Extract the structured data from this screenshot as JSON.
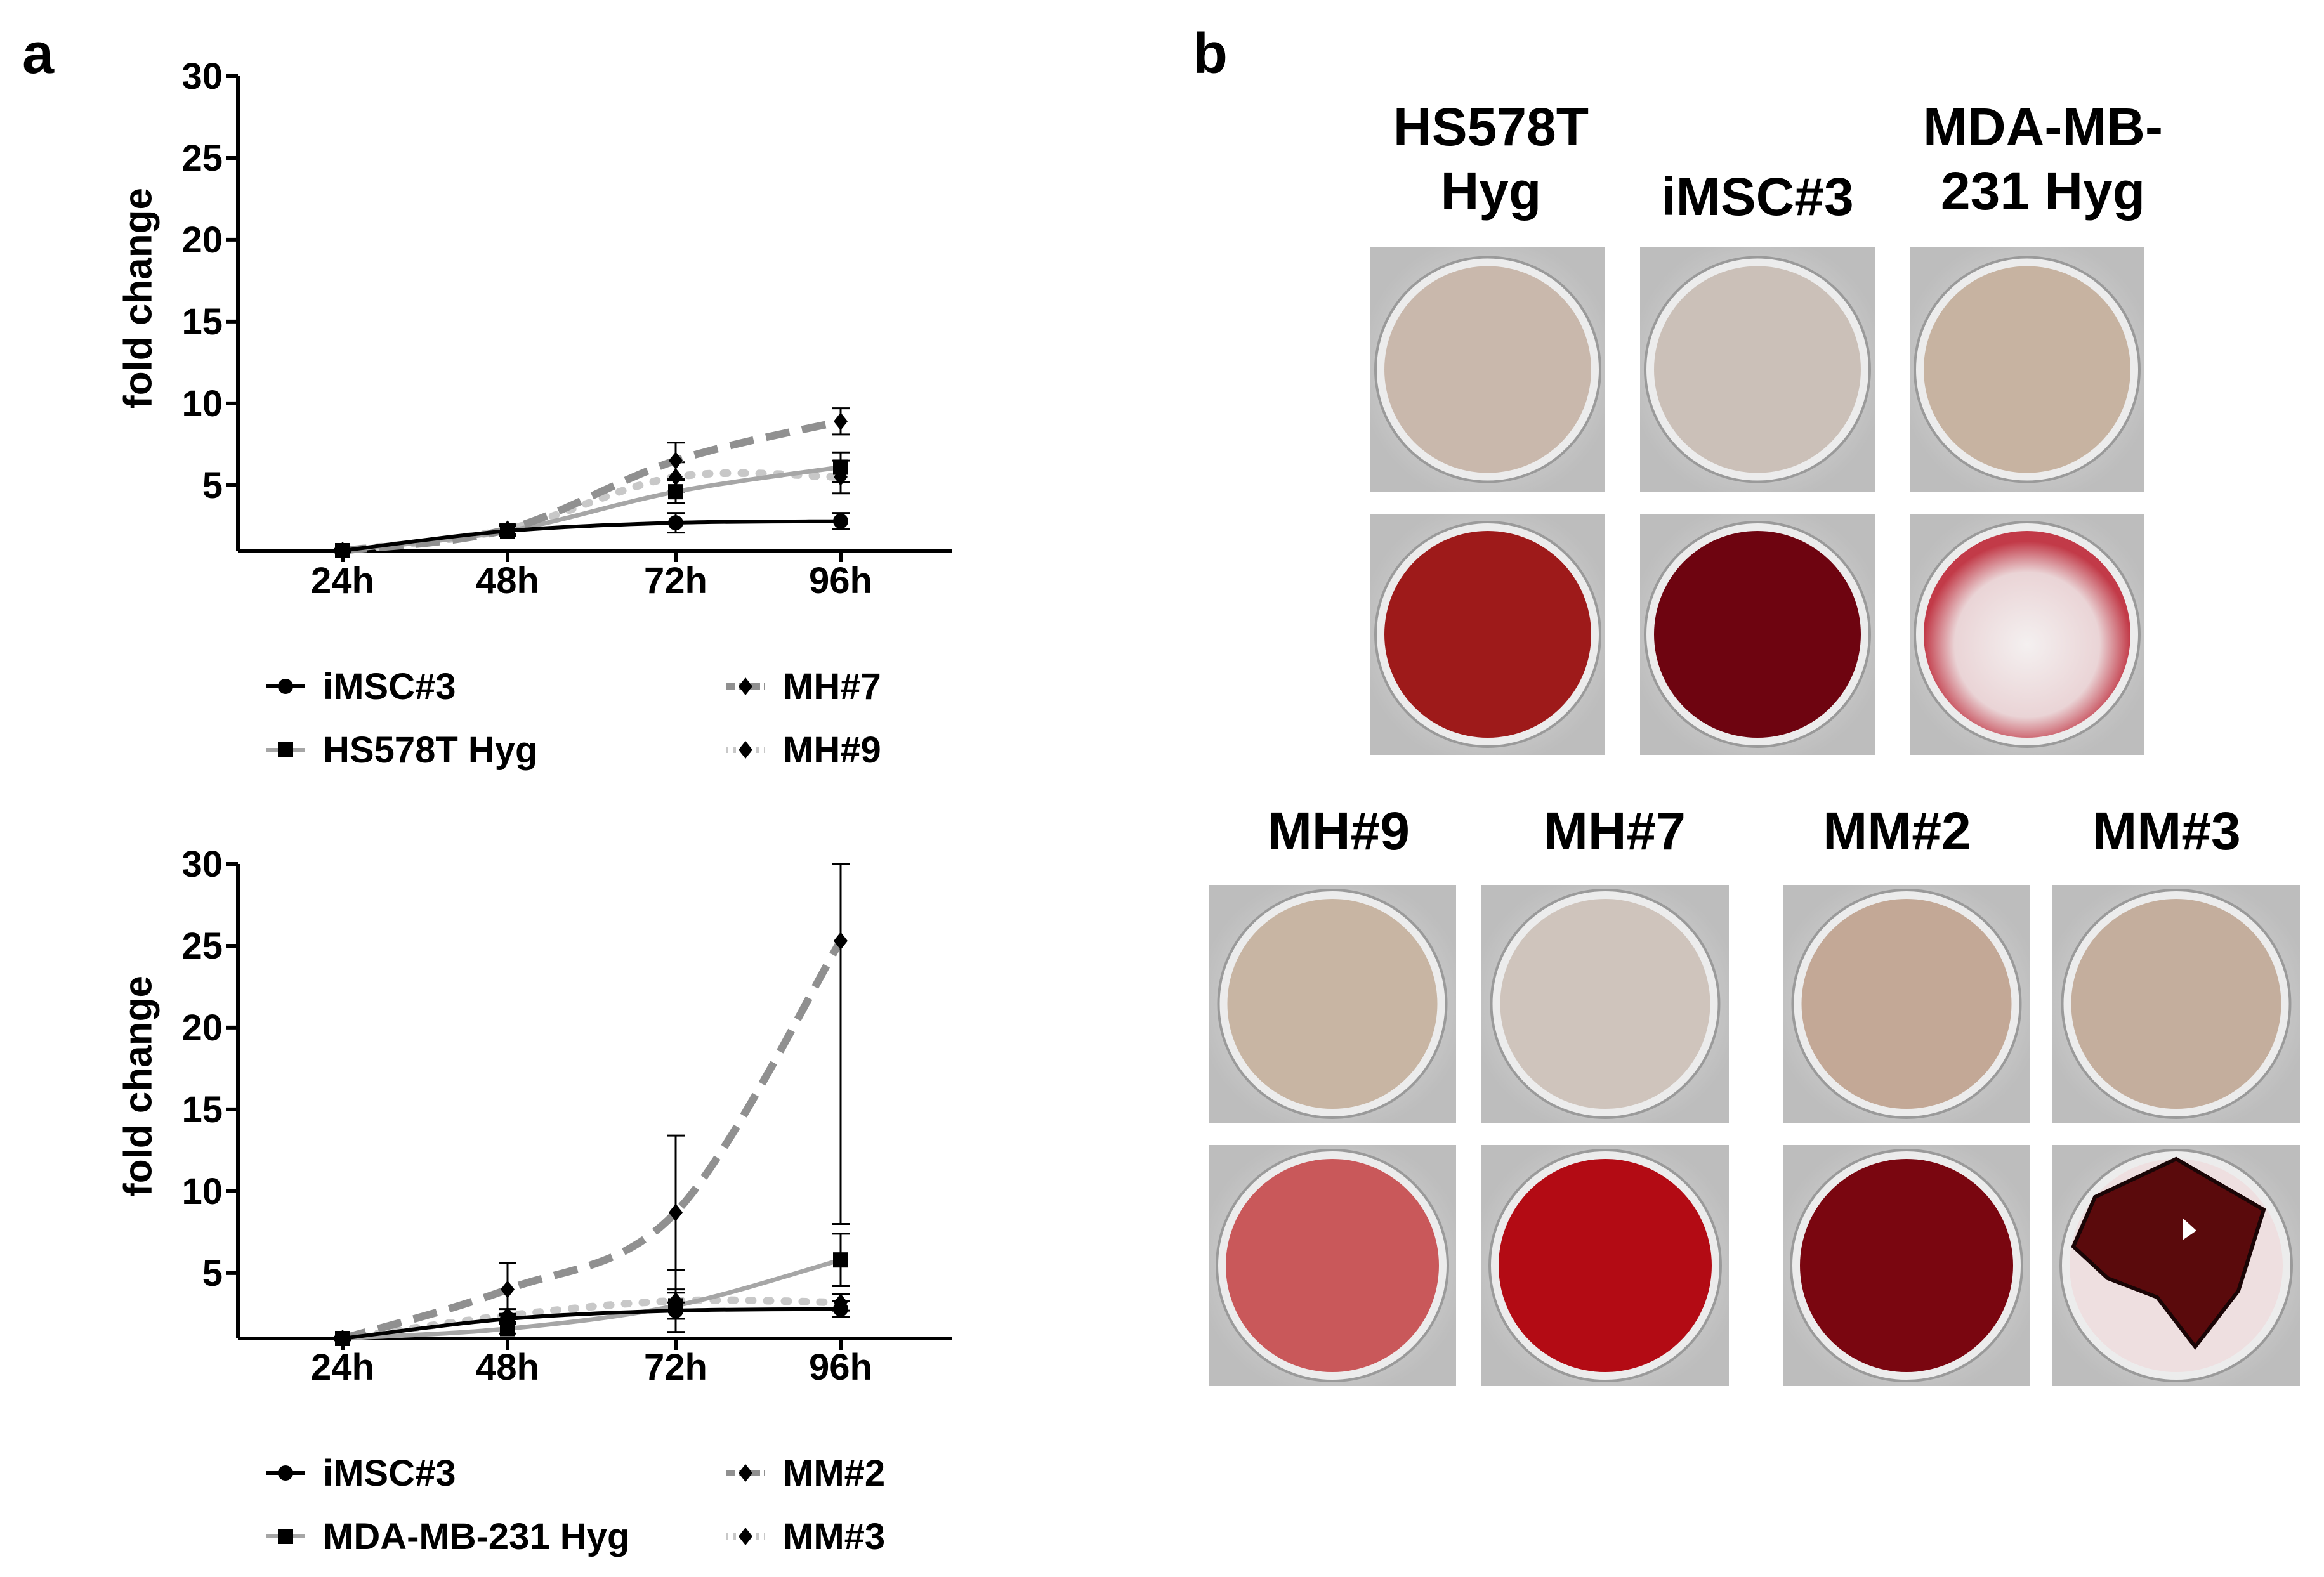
{
  "panels": {
    "a": "a",
    "b": "b"
  },
  "chart_data": [
    {
      "type": "line",
      "ylabel": "fold change",
      "xlabel": "",
      "categories": [
        "24h",
        "48h",
        "72h",
        "96h"
      ],
      "yticks": [
        "5",
        "10",
        "15",
        "20",
        "25",
        "30"
      ],
      "ylim": [
        1,
        30
      ],
      "series": [
        {
          "name": "iMSC#3",
          "values": [
            1.0,
            2.2,
            2.7,
            2.8
          ],
          "err": [
            0.1,
            0.3,
            0.6,
            0.5
          ],
          "color": "#000000",
          "dash": "solid",
          "marker": "circle"
        },
        {
          "name": "HS578T Hyg",
          "values": [
            1.0,
            2.2,
            4.6,
            6.1
          ],
          "err": [
            0.1,
            0.3,
            0.7,
            0.9
          ],
          "color": "#a6a6a6",
          "dash": "solid",
          "marker": "square"
        },
        {
          "name": "MH#7",
          "values": [
            1.0,
            2.3,
            6.5,
            8.9
          ],
          "err": [
            0.1,
            0.3,
            1.1,
            0.8
          ],
          "color": "#909090",
          "dash": "dashed",
          "marker": "diamond"
        },
        {
          "name": "MH#9",
          "values": [
            1.0,
            2.3,
            5.5,
            5.5
          ],
          "err": [
            0.1,
            0.3,
            0.9,
            1.0
          ],
          "color": "#c8c8c8",
          "dash": "dotted",
          "marker": "diamond"
        }
      ],
      "legend": [
        {
          "label": "iMSC#3",
          "marker": "circle",
          "color": "#000000",
          "dash": "solid"
        },
        {
          "label": "MH#7",
          "marker": "diamond",
          "color": "#909090",
          "dash": "dashed"
        },
        {
          "label": "HS578T Hyg",
          "marker": "square",
          "color": "#a6a6a6",
          "dash": "solid"
        },
        {
          "label": "MH#9",
          "marker": "diamond",
          "color": "#c8c8c8",
          "dash": "dotted"
        }
      ]
    },
    {
      "type": "line",
      "ylabel": "fold change",
      "xlabel": "",
      "categories": [
        "24h",
        "48h",
        "72h",
        "96h"
      ],
      "yticks": [
        "5",
        "10",
        "15",
        "20",
        "25",
        "30"
      ],
      "ylim": [
        1,
        30
      ],
      "series": [
        {
          "name": "iMSC#3",
          "values": [
            1.0,
            2.2,
            2.7,
            2.8
          ],
          "err": [
            0.1,
            0.3,
            0.5,
            0.5
          ],
          "color": "#000000",
          "dash": "solid",
          "marker": "circle"
        },
        {
          "name": "MDA-MB-231 Hyg",
          "values": [
            1.0,
            1.6,
            3.0,
            5.8
          ],
          "err": [
            0.1,
            0.3,
            0.8,
            1.6
          ],
          "color": "#a6a6a6",
          "dash": "solid",
          "marker": "square"
        },
        {
          "name": "MM#2",
          "values": [
            1.0,
            4.0,
            8.7,
            25.3
          ],
          "err": [
            0.1,
            1.6,
            4.7,
            17.3
          ],
          "color": "#909090",
          "dash": "dashed",
          "marker": "diamond"
        },
        {
          "name": "MM#3",
          "values": [
            1.0,
            2.4,
            3.3,
            3.2
          ],
          "err": [
            0.1,
            0.4,
            1.9,
            0.5
          ],
          "color": "#c8c8c8",
          "dash": "dotted",
          "marker": "diamond"
        }
      ],
      "legend": [
        {
          "label": "iMSC#3",
          "marker": "circle",
          "color": "#000000",
          "dash": "solid"
        },
        {
          "label": "MM#2",
          "marker": "diamond",
          "color": "#909090",
          "dash": "dashed"
        },
        {
          "label": "MDA-MB-231 Hyg",
          "marker": "square",
          "color": "#a6a6a6",
          "dash": "solid"
        },
        {
          "label": "MM#3",
          "marker": "diamond",
          "color": "#c8c8c8",
          "dash": "dotted"
        }
      ]
    }
  ],
  "wells": {
    "top_titles": [
      "HS578T\nHyg",
      "iMSC#3",
      "MDA-MB-\n231 Hyg"
    ],
    "bottom_titles": [
      "MH#9",
      "MH#7",
      "MM#2",
      "MM#3"
    ],
    "top_row1": [
      "#c9b8ac",
      "#cbc0b8",
      "#c7b3a1"
    ],
    "top_row2": [
      "#9e1a1a",
      "#6e0410",
      "#f0e6e6"
    ],
    "bottom_row1": [
      "#c8b5a3",
      "#cfc4bc",
      "#c3a896",
      "#c4ae9d"
    ],
    "bottom_row2": [
      "#c9585a",
      "#b30b14",
      "#7a0610",
      "#5a0a0c"
    ]
  }
}
